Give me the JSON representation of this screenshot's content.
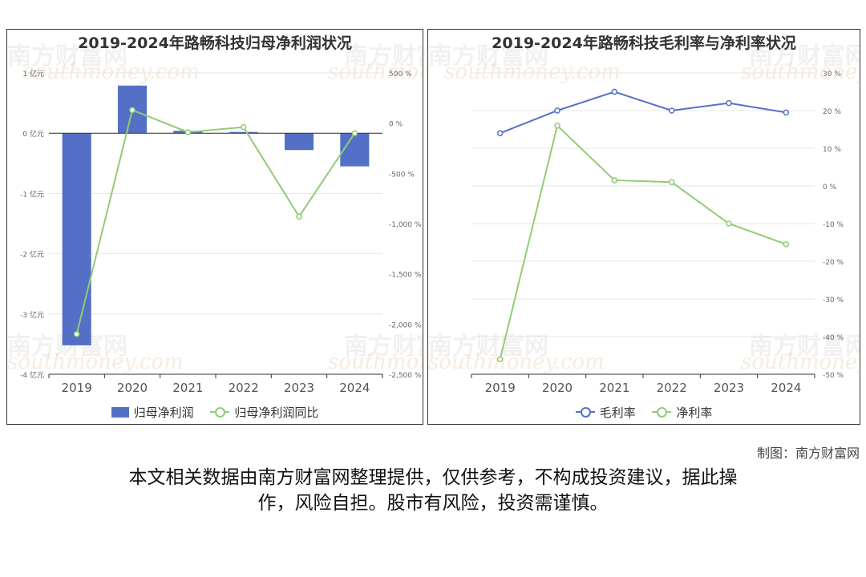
{
  "colors": {
    "bar": "#5470c6",
    "green": "#91cc75",
    "blue": "#5470c6",
    "grid": "#e6e6e6",
    "axis": "#333333",
    "tick": "#666666"
  },
  "watermark": {
    "cn": "南方财富网",
    "en": "southmoney.com"
  },
  "credit": "制图：南方财富网",
  "disclaimer_line1": "本文相关数据由南方财富网整理提供，仅供参考，不构成投资建议，据此操",
  "disclaimer_line2": "作，风险自担。股市有风险，投资需谨慎。",
  "chart_data": [
    {
      "type": "bar",
      "title": "2019-2024年路畅科技归母净利润状况",
      "categories": [
        "2019",
        "2020",
        "2021",
        "2022",
        "2023",
        "2024"
      ],
      "left_axis": {
        "ticks": [
          1,
          0,
          -1,
          -2,
          -3,
          -4
        ],
        "unit": "亿元",
        "ylim": [
          -4,
          1
        ]
      },
      "right_axis": {
        "ticks": [
          "500 %",
          "0 %",
          "-500 %",
          "-1,000 %",
          "-1,500 %",
          "-2,000 %",
          "-2,500 %"
        ],
        "values": [
          500,
          0,
          -500,
          -1000,
          -1500,
          -2000,
          -2500
        ],
        "ylim": [
          -2500,
          500
        ]
      },
      "series": [
        {
          "name": "归母净利润",
          "type": "bar",
          "values": [
            -3.52,
            0.79,
            0.04,
            0.02,
            -0.28,
            -0.55
          ]
        },
        {
          "name": "归母净利润同比",
          "type": "line",
          "values": [
            -2100,
            130,
            -90,
            -40,
            -930,
            -100
          ]
        }
      ],
      "legend_position": "bottom"
    },
    {
      "type": "line",
      "title": "2019-2024年路畅科技毛利率与净利率状况",
      "categories": [
        "2019",
        "2020",
        "2021",
        "2022",
        "2023",
        "2024"
      ],
      "right_axis": {
        "ticks": [
          "30 %",
          "20 %",
          "10 %",
          "0 %",
          "-10 %",
          "-20 %",
          "-30 %",
          "-40 %",
          "-50 %"
        ],
        "values": [
          30,
          20,
          10,
          0,
          -10,
          -20,
          -30,
          -40,
          -50
        ],
        "ylim": [
          -50,
          30
        ]
      },
      "series": [
        {
          "name": "毛利率",
          "values": [
            14,
            20,
            25,
            20,
            22,
            19.5
          ]
        },
        {
          "name": "净利率",
          "values": [
            -46,
            16,
            1.5,
            1,
            -10,
            -15.5
          ]
        }
      ],
      "legend_position": "bottom"
    }
  ]
}
